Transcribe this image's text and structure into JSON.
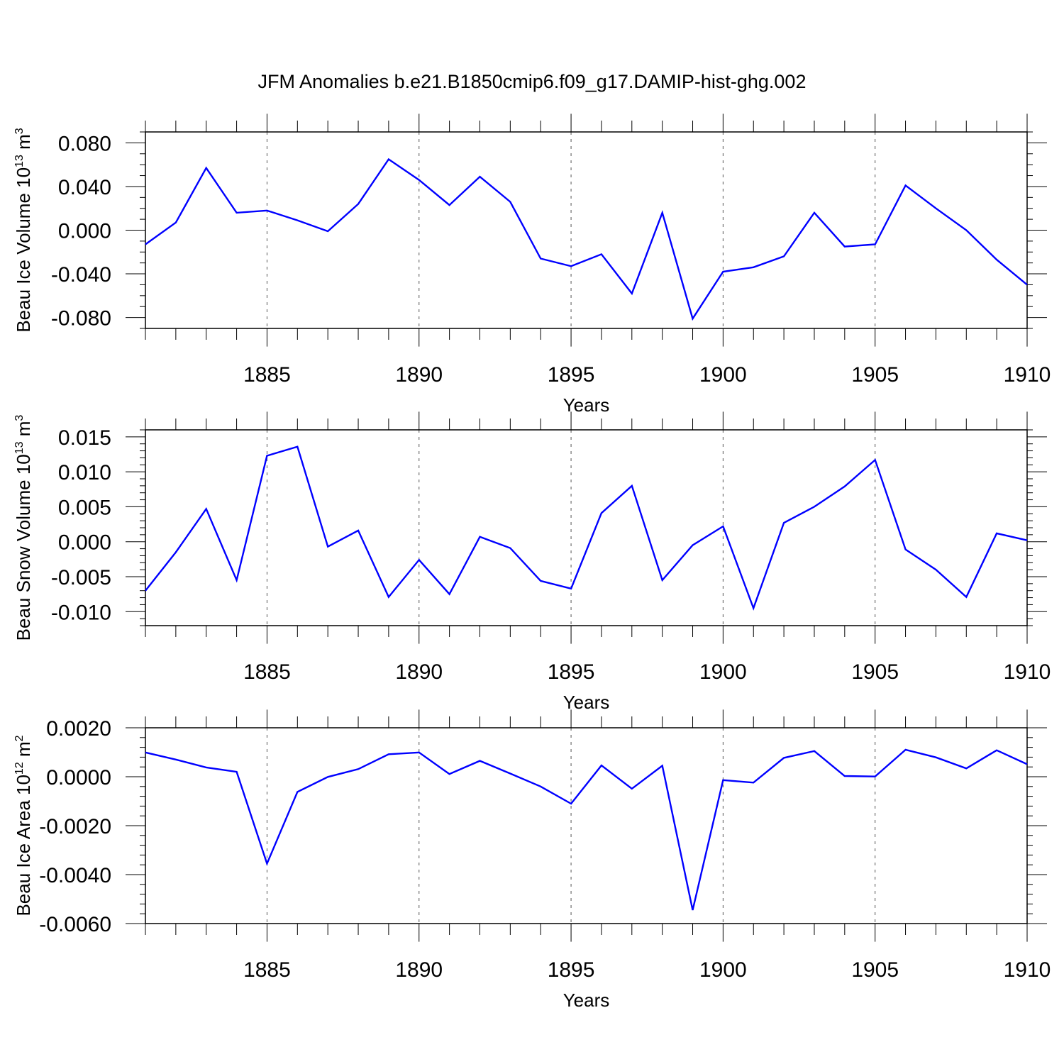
{
  "figure": {
    "title": "JFM Anomalies b.e21.B1850cmip6.f09_g17.DAMIP-hist-ghg.002"
  },
  "colors": {
    "series": "#0000ff",
    "axis": "#000000",
    "grid": "#555555"
  },
  "chart_data": [
    {
      "type": "line",
      "xlabel": "Years",
      "ylabel": {
        "text": "Beau Ice Volume 10",
        "exp": "13",
        "unit": " m",
        "unit_exp": "3"
      },
      "xlim": [
        1881,
        1910
      ],
      "ylim": [
        -0.09,
        0.09
      ],
      "x_ticks": [
        1885,
        1890,
        1895,
        1900,
        1905,
        1910
      ],
      "y_ticks": [
        -0.08,
        -0.04,
        0.0,
        0.04,
        0.08
      ],
      "y_tick_labels": [
        "-0.080",
        "-0.040",
        "0.000",
        "0.040",
        "0.080"
      ],
      "y_minor_step": 0.01,
      "grid": "vertical-dashed",
      "x": [
        1881,
        1882,
        1883,
        1884,
        1885,
        1886,
        1887,
        1888,
        1889,
        1890,
        1891,
        1892,
        1893,
        1894,
        1895,
        1896,
        1897,
        1898,
        1899,
        1900,
        1901,
        1902,
        1903,
        1904,
        1905,
        1906,
        1907,
        1908,
        1909,
        1910
      ],
      "series": [
        {
          "values": [
            -0.013,
            0.007,
            0.057,
            0.016,
            0.018,
            0.009,
            -0.001,
            0.024,
            0.065,
            0.046,
            0.023,
            0.049,
            0.026,
            -0.026,
            -0.033,
            -0.022,
            -0.058,
            0.016,
            -0.081,
            -0.038,
            -0.034,
            -0.024,
            0.016,
            -0.015,
            -0.013,
            0.041,
            0.02,
            0.0,
            -0.027,
            -0.05
          ]
        }
      ]
    },
    {
      "type": "line",
      "xlabel": "Years",
      "ylabel": {
        "text": "Beau Snow Volume 10",
        "exp": "13",
        "unit": " m",
        "unit_exp": "3"
      },
      "xlim": [
        1881,
        1910
      ],
      "ylim": [
        -0.012,
        0.016
      ],
      "x_ticks": [
        1885,
        1890,
        1895,
        1900,
        1905,
        1910
      ],
      "y_ticks": [
        -0.01,
        -0.005,
        0.0,
        0.005,
        0.01,
        0.015
      ],
      "y_tick_labels": [
        "-0.010",
        "-0.005",
        "0.000",
        "0.005",
        "0.010",
        "0.015"
      ],
      "y_minor_step": 0.001,
      "grid": "vertical-dashed",
      "x": [
        1881,
        1882,
        1883,
        1884,
        1885,
        1886,
        1887,
        1888,
        1889,
        1890,
        1891,
        1892,
        1893,
        1894,
        1895,
        1896,
        1897,
        1898,
        1899,
        1900,
        1901,
        1902,
        1903,
        1904,
        1905,
        1906,
        1907,
        1908,
        1909,
        1910
      ],
      "series": [
        {
          "values": [
            -0.007,
            -0.0015,
            0.0047,
            -0.0055,
            0.0123,
            0.0136,
            -0.0007,
            0.0016,
            -0.0079,
            -0.0026,
            -0.0075,
            0.0007,
            -0.0009,
            -0.0056,
            -0.0067,
            0.0041,
            0.008,
            -0.0055,
            -0.0005,
            0.0022,
            -0.0095,
            0.0027,
            0.005,
            0.0079,
            0.0117,
            -0.0011,
            -0.004,
            -0.0079,
            0.0012,
            0.0002
          ]
        }
      ]
    },
    {
      "type": "line",
      "xlabel": "Years",
      "ylabel": {
        "text": "Beau Ice Area 10",
        "exp": "12",
        "unit": " m",
        "unit_exp": "2"
      },
      "xlim": [
        1881,
        1910
      ],
      "ylim": [
        -0.006,
        0.002
      ],
      "x_ticks": [
        1885,
        1890,
        1895,
        1900,
        1905,
        1910
      ],
      "y_ticks": [
        -0.006,
        -0.004,
        -0.002,
        0.0,
        0.002
      ],
      "y_tick_labels": [
        "-0.0060",
        "-0.0040",
        "-0.0020",
        "0.0000",
        "0.0020"
      ],
      "y_minor_step": 0.0004,
      "grid": "vertical-dashed",
      "x": [
        1881,
        1882,
        1883,
        1884,
        1885,
        1886,
        1887,
        1888,
        1889,
        1890,
        1891,
        1892,
        1893,
        1894,
        1895,
        1896,
        1897,
        1898,
        1899,
        1900,
        1901,
        1902,
        1903,
        1904,
        1905,
        1906,
        1907,
        1908,
        1909,
        1910
      ],
      "series": [
        {
          "values": [
            0.00099,
            0.0007,
            0.00038,
            0.0002,
            -0.00355,
            -0.00062,
            -1e-05,
            0.00031,
            0.00092,
            0.00099,
            0.00011,
            0.00065,
            0.00013,
            -0.0004,
            -0.0011,
            0.00046,
            -0.00049,
            0.00045,
            -0.00545,
            -0.00014,
            -0.00024,
            0.00077,
            0.00105,
            3e-05,
            1e-05,
            0.0011,
            0.00079,
            0.00034,
            0.00108,
            0.00051
          ]
        }
      ]
    }
  ]
}
